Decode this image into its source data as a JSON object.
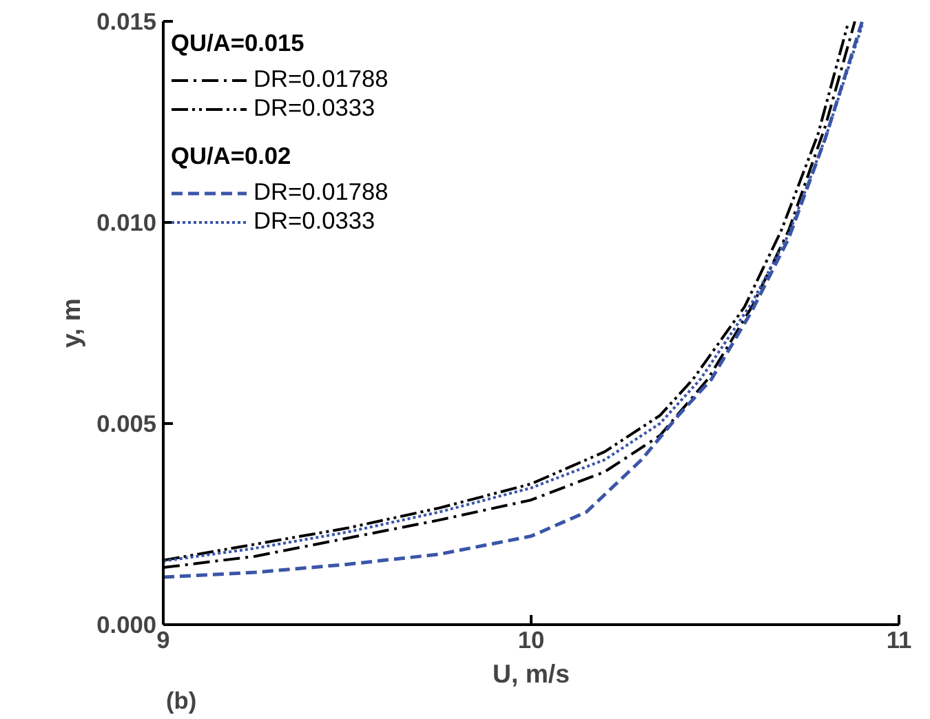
{
  "chart_data": {
    "type": "line",
    "xlabel": "U, m/s",
    "ylabel": "y, m",
    "xlim": [
      9,
      11
    ],
    "ylim": [
      0,
      0.015
    ],
    "xticks": [
      9,
      10,
      11
    ],
    "yticks": [
      {
        "value": 0,
        "label": "0.000"
      },
      {
        "value": 0.005,
        "label": "0.005"
      },
      {
        "value": 0.01,
        "label": "0.010"
      },
      {
        "value": 0.015,
        "label": "0.015"
      }
    ],
    "grid": false,
    "legend": "top left",
    "annotations": [
      "QU/A=0.015",
      "QU/A=0.02",
      "(b)"
    ],
    "series": [
      {
        "name": "DR=0.01788",
        "color": "#000000",
        "line_style": "dashdot",
        "x": [
          9,
          9.25,
          9.5,
          9.75,
          10,
          10.2,
          10.35,
          10.48,
          10.6,
          10.7,
          10.8,
          10.88
        ],
        "values": [
          0.00142,
          0.0017,
          0.00215,
          0.0026,
          0.0031,
          0.0038,
          0.0047,
          0.0061,
          0.0079,
          0.0098,
          0.0124,
          0.015
        ]
      },
      {
        "name": "DR=0.0333",
        "color": "#000000",
        "line_style": "dashdotdot",
        "x": [
          9,
          9.25,
          9.5,
          9.75,
          10,
          10.2,
          10.35,
          10.44,
          10.58,
          10.68,
          10.78,
          10.86
        ],
        "values": [
          0.0016,
          0.002,
          0.0024,
          0.0029,
          0.0035,
          0.0043,
          0.0052,
          0.0061,
          0.0079,
          0.0098,
          0.0122,
          0.0149
        ]
      },
      {
        "name": "DR=0.01788",
        "color": "#3a55a8",
        "line_style": "dashed",
        "x": [
          9,
          9.25,
          9.5,
          9.75,
          10,
          10.15,
          10.3,
          10.4,
          10.49,
          10.6,
          10.7,
          10.8,
          10.9
        ],
        "values": [
          0.00118,
          0.0013,
          0.0015,
          0.00175,
          0.0022,
          0.0028,
          0.0041,
          0.0052,
          0.0061,
          0.0078,
          0.0096,
          0.0121,
          0.015
        ]
      },
      {
        "name": "DR=0.0333",
        "color": "#3a55a8",
        "line_style": "dotted",
        "x": [
          9,
          9.25,
          9.5,
          9.75,
          10,
          10.2,
          10.35,
          10.46,
          10.6,
          10.7,
          10.8,
          10.9
        ],
        "values": [
          0.00158,
          0.0019,
          0.0023,
          0.0028,
          0.0034,
          0.0041,
          0.005,
          0.0061,
          0.008,
          0.0097,
          0.0121,
          0.0149
        ]
      }
    ]
  }
}
